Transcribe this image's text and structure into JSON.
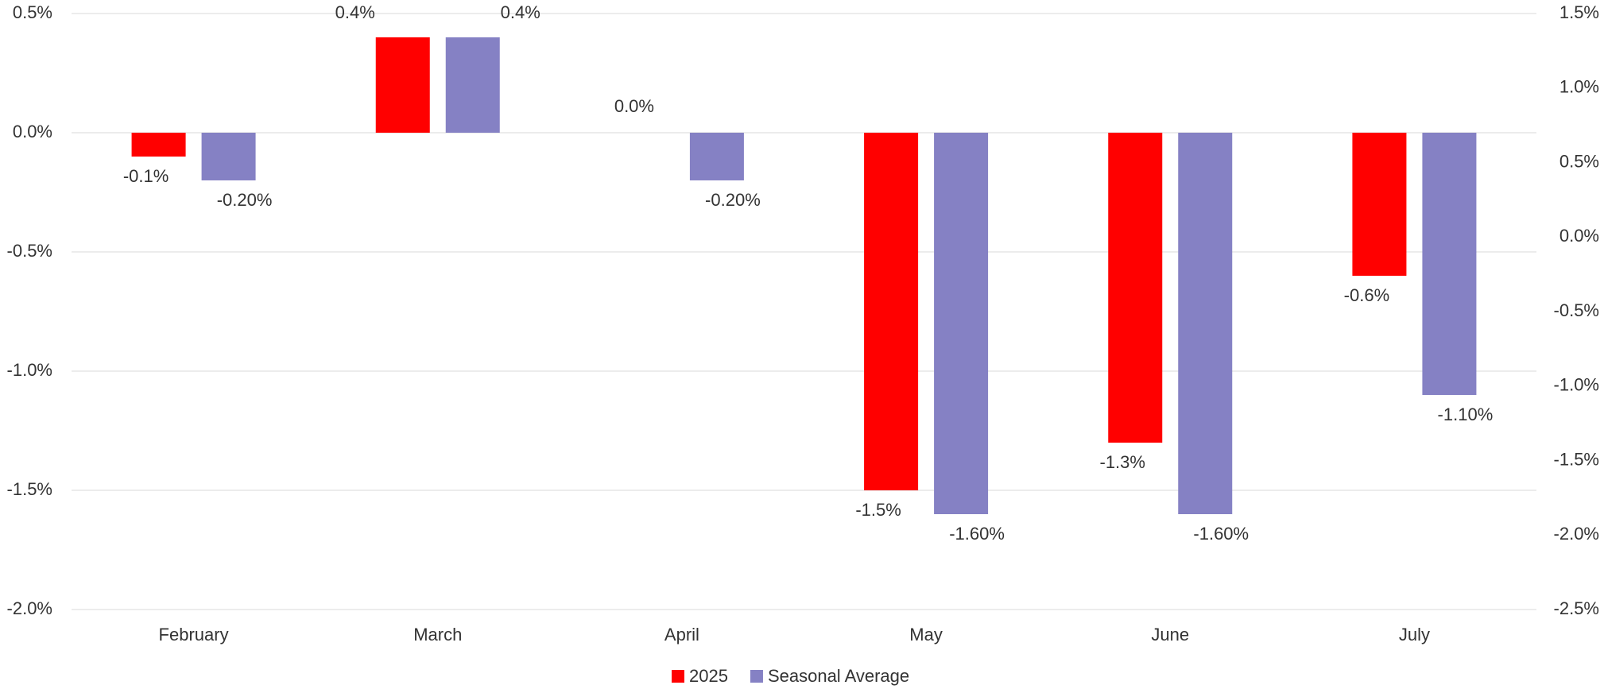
{
  "chart_data": {
    "type": "bar",
    "categories": [
      "February",
      "March",
      "April",
      "May",
      "June",
      "July"
    ],
    "series": [
      {
        "name": "2025",
        "color": "#ff0000",
        "values": [
          -0.1,
          0.4,
          0,
          -1.5,
          -1.3,
          -0.6
        ],
        "value_labels": [
          "-0.1%",
          "0.4%",
          "0.0%",
          "-1.5%",
          "-1.3%",
          "-0.6%"
        ]
      },
      {
        "name": "Seasonal Average",
        "color": "#8581c4",
        "values": [
          -0.2,
          0.4,
          -0.2,
          -1.6,
          -1.6,
          -1.1
        ],
        "value_labels": [
          "-0.20%",
          "0.4%",
          "-0.20%",
          "-1.60%",
          "-1.60%",
          "-1.10%"
        ]
      }
    ],
    "ylim": [
      -2.0,
      0.5
    ],
    "yticks": [
      {
        "value": 0.5,
        "label": "0.5%"
      },
      {
        "value": 0,
        "label": "0.0%"
      },
      {
        "value": -0.5,
        "label": "-0.5%"
      },
      {
        "value": -1.0,
        "label": "-1.0%"
      },
      {
        "value": -1.5,
        "label": "-1.5%"
      },
      {
        "value": -2.0,
        "label": "-2.0%"
      }
    ],
    "y2lim": [
      -2.5,
      1.5
    ],
    "y2ticks": [
      {
        "value": 1.5,
        "label": "1.5%"
      },
      {
        "value": 1.0,
        "label": "1.0%"
      },
      {
        "value": 0.5,
        "label": "0.5%"
      },
      {
        "value": 0,
        "label": "0.0%"
      },
      {
        "value": -0.5,
        "label": "-0.5%"
      },
      {
        "value": -1.0,
        "label": "-1.0%"
      },
      {
        "value": -1.5,
        "label": "-1.5%"
      },
      {
        "value": -2.0,
        "label": "-2.0%"
      },
      {
        "value": -2.5,
        "label": "-2.5%"
      }
    ],
    "grid": true,
    "legend": "bottom"
  }
}
